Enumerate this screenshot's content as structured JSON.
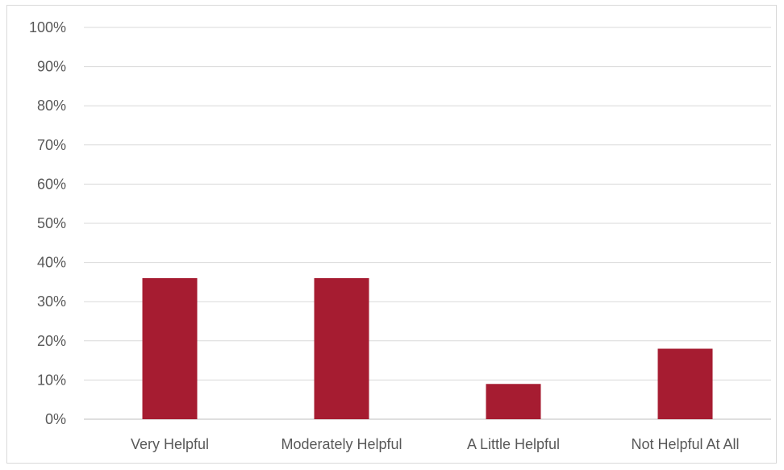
{
  "chart_data": {
    "type": "bar",
    "title": "",
    "xlabel": "",
    "ylabel": "",
    "categories": [
      "Very Helpful",
      "Moderately Helpful",
      "A Little Helpful",
      "Not Helpful At All"
    ],
    "values": [
      0.36,
      0.36,
      0.09,
      0.18
    ],
    "ylim": [
      0,
      1
    ],
    "yticks": [
      "0%",
      "10%",
      "20%",
      "30%",
      "40%",
      "50%",
      "60%",
      "70%",
      "80%",
      "90%",
      "100%"
    ],
    "grid": true,
    "legend": "none",
    "colors": {
      "bar": "#a61c31",
      "grid": "#d9d9d9",
      "axis": "#bfbfbf",
      "text": "#595959"
    }
  }
}
